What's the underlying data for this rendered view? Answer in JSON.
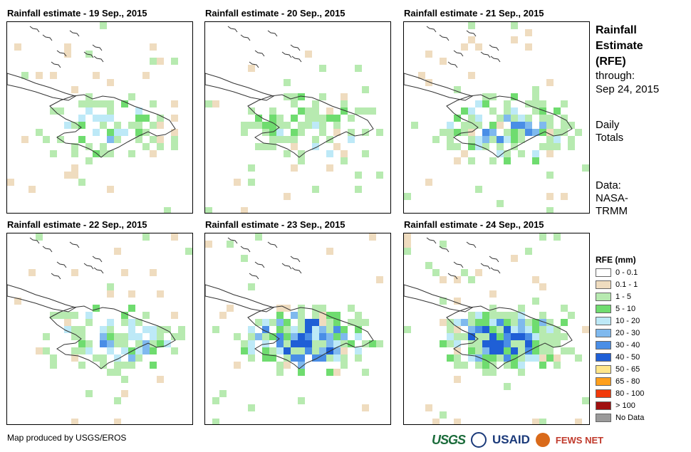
{
  "panels": [
    {
      "title": "Rainfall estimate - 19 Sep., 2015"
    },
    {
      "title": "Rainfall estimate - 20 Sep., 2015"
    },
    {
      "title": "Rainfall estimate - 21 Sep., 2015"
    },
    {
      "title": "Rainfall estimate - 22 Sep., 2015"
    },
    {
      "title": "Rainfall estimate - 23 Sep., 2015"
    },
    {
      "title": "Rainfall estimate - 24 Sep., 2015"
    }
  ],
  "side": {
    "title_lines": [
      "Rainfall",
      "Estimate",
      "(RFE)"
    ],
    "through_label": "through:",
    "through_date": "Sep 24, 2015",
    "totals_lines": [
      "Daily",
      "Totals"
    ],
    "data_lines": [
      "Data:",
      "NASA-",
      "TRMM"
    ]
  },
  "legend": {
    "title": "RFE (mm)",
    "items": [
      {
        "label": "0 - 0.1",
        "color": "#ffffff"
      },
      {
        "label": "0.1 - 1",
        "color": "#efdcbf"
      },
      {
        "label": "1 - 5",
        "color": "#b7eab0"
      },
      {
        "label": "5 - 10",
        "color": "#6fdc6f"
      },
      {
        "label": "10 - 20",
        "color": "#bde9f7"
      },
      {
        "label": "20 - 30",
        "color": "#7fb9ee"
      },
      {
        "label": "30 - 40",
        "color": "#4a8ee6"
      },
      {
        "label": "40 - 50",
        "color": "#1f5fd6"
      },
      {
        "label": "50 - 65",
        "color": "#ffe68a"
      },
      {
        "label": "65 - 80",
        "color": "#ff9f1c"
      },
      {
        "label": "80 - 100",
        "color": "#f23a0a"
      },
      {
        "label": "> 100",
        "color": "#a01010"
      },
      {
        "label": "No Data",
        "color": "#9a9a9a"
      }
    ]
  },
  "footer": {
    "credit": "Map produced by USGS/EROS",
    "logo_usgs": "USGS",
    "logo_usaid": "USAID",
    "logo_fews": "FEWS NET"
  }
}
